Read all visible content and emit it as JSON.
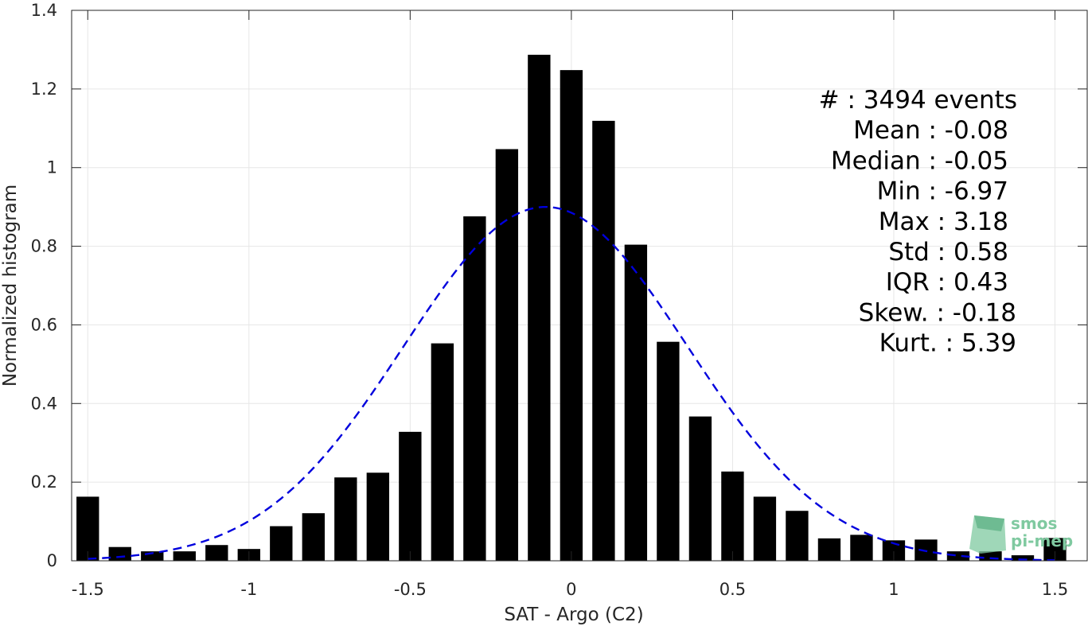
{
  "chart_data": {
    "type": "bar",
    "xlabel": "SAT - Argo (C2)",
    "ylabel": "Normalized histogram",
    "xlim": [
      -1.55,
      1.6
    ],
    "ylim": [
      0,
      1.4
    ],
    "xticks": [
      -1.5,
      -1,
      -0.5,
      0,
      0.5,
      1,
      1.5
    ],
    "xtick_labels": [
      "-1.5",
      "-1",
      "-0.5",
      "0",
      "0.5",
      "1",
      "1.5"
    ],
    "yticks": [
      0,
      0.2,
      0.4,
      0.6,
      0.8,
      1,
      1.2,
      1.4
    ],
    "ytick_labels": [
      "0",
      "0.2",
      "0.4",
      "0.6",
      "0.8",
      "1",
      "1.2",
      "1.4"
    ],
    "grid": true,
    "bar_width": 0.07,
    "bar_color": "#000000",
    "x": [
      -1.5,
      -1.4,
      -1.3,
      -1.2,
      -1.1,
      -1.0,
      -0.9,
      -0.8,
      -0.7,
      -0.6,
      -0.5,
      -0.4,
      -0.3,
      -0.2,
      -0.1,
      0.0,
      0.1,
      0.2,
      0.3,
      0.4,
      0.5,
      0.6,
      0.7,
      0.8,
      0.9,
      1.0,
      1.1,
      1.2,
      1.3,
      1.4,
      1.5
    ],
    "values": [
      0.163,
      0.035,
      0.024,
      0.024,
      0.04,
      0.03,
      0.088,
      0.121,
      0.212,
      0.224,
      0.328,
      0.553,
      0.876,
      1.047,
      1.287,
      1.248,
      1.119,
      0.804,
      0.557,
      0.367,
      0.227,
      0.163,
      0.127,
      0.057,
      0.066,
      0.052,
      0.054,
      0.024,
      0.024,
      0.014,
      0.058
    ],
    "fit": {
      "type": "gaussian",
      "mean": -0.08,
      "std": 0.44,
      "peak": 0.9,
      "color": "#0000dd",
      "line_style": "dashed",
      "x_range": [
        -1.5,
        1.5
      ]
    },
    "annotations": [
      "#  : 3494 events",
      "Mean : -0.08",
      "Median : -0.05",
      "Min : -6.97",
      "Max : 3.18",
      "Std : 0.58",
      "IQR : 0.43",
      "Skew. : -0.18",
      "Kurt. : 5.39"
    ]
  },
  "watermark": {
    "line1": "smos",
    "line2": "pi-mep",
    "color": "#7fc9a0"
  }
}
